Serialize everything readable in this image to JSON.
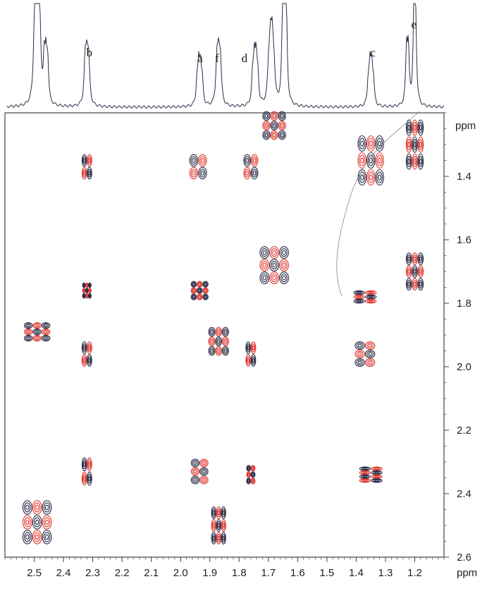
{
  "chart_data": {
    "type": "2d-nmr-contour",
    "title": "",
    "x_axis": {
      "label": "ppm",
      "range": [
        2.6,
        1.1
      ],
      "reversed": true,
      "ticks": [
        2.5,
        2.4,
        2.3,
        2.2,
        2.1,
        2.0,
        1.9,
        1.8,
        1.7,
        1.6,
        1.5,
        1.4,
        1.3,
        1.2
      ],
      "tick_labels": [
        "2.5",
        "2.4",
        "2.3",
        "2.2",
        "2.1",
        "2.0",
        "1.9",
        "1.8",
        "1.7",
        "1.6",
        "1.5",
        "1.4",
        "1.3",
        "1.2"
      ]
    },
    "y_axis": {
      "label": "ppm",
      "range": [
        1.2,
        2.6
      ],
      "ticks": [
        1.4,
        1.6,
        1.8,
        2.0,
        2.2,
        2.4,
        2.6
      ],
      "tick_labels": [
        "1.4",
        "1.6",
        "1.8",
        "2.0",
        "2.2",
        "2.4",
        "2.6"
      ]
    },
    "colors": {
      "positive": "#262a45",
      "negative": "#e0382f",
      "spectrum": "#2a2e4a"
    },
    "projection_1d": {
      "peaks": [
        {
          "label": "",
          "ppm": 2.49,
          "height": 1.0,
          "width": 0.012,
          "multiplicity": 4
        },
        {
          "label": "",
          "ppm": 2.46,
          "height": 0.42,
          "width": 0.01,
          "multiplicity": 3
        },
        {
          "label": "b",
          "ppm": 2.32,
          "height": 0.42,
          "width": 0.012,
          "multiplicity": 3
        },
        {
          "label": "a",
          "ppm": 1.935,
          "height": 0.38,
          "width": 0.01,
          "multiplicity": 4
        },
        {
          "label": "f",
          "ppm": 1.87,
          "height": 0.42,
          "width": 0.012,
          "multiplicity": 3
        },
        {
          "label": "d",
          "ppm": 1.745,
          "height": 0.45,
          "width": 0.01,
          "multiplicity": 4
        },
        {
          "label": "",
          "ppm": 1.69,
          "height": 0.55,
          "width": 0.012,
          "multiplicity": 4
        },
        {
          "label": "",
          "ppm": 1.645,
          "height": 0.92,
          "width": 0.01,
          "multiplicity": 3
        },
        {
          "label": "c",
          "ppm": 1.35,
          "height": 0.38,
          "width": 0.01,
          "multiplicity": 4
        },
        {
          "label": "",
          "ppm": 1.225,
          "height": 0.55,
          "width": 0.01,
          "multiplicity": 2
        },
        {
          "label": "e",
          "ppm": 1.2,
          "height": 0.85,
          "width": 0.01,
          "multiplicity": 2
        }
      ],
      "peak_labels": [
        {
          "text": "b",
          "ppm": 2.31
        },
        {
          "text": "a",
          "ppm": 1.93
        },
        {
          "text": "f",
          "ppm": 1.87
        },
        {
          "text": "d",
          "ppm": 1.78
        },
        {
          "text": "c",
          "ppm": 1.34
        },
        {
          "text": "e",
          "ppm": 1.2
        }
      ]
    },
    "cross_peaks": [
      {
        "x": 2.32,
        "y": 1.37,
        "w": 0.035,
        "h": 0.08,
        "pattern": "2x2"
      },
      {
        "x": 1.94,
        "y": 1.37,
        "w": 0.06,
        "h": 0.08,
        "pattern": "2x2"
      },
      {
        "x": 1.76,
        "y": 1.37,
        "w": 0.05,
        "h": 0.08,
        "pattern": "2x2"
      },
      {
        "x": 1.35,
        "y": 1.35,
        "w": 0.09,
        "h": 0.16,
        "pattern": "grid"
      },
      {
        "x": 1.2,
        "y": 1.3,
        "w": 0.06,
        "h": 0.16,
        "pattern": "grid"
      },
      {
        "x": 1.68,
        "y": 1.24,
        "w": 0.08,
        "h": 0.09,
        "pattern": "grid"
      },
      {
        "x": 2.32,
        "y": 1.76,
        "w": 0.03,
        "h": 0.05,
        "pattern": "3x3"
      },
      {
        "x": 1.935,
        "y": 1.76,
        "w": 0.06,
        "h": 0.06,
        "pattern": "3x3"
      },
      {
        "x": 1.37,
        "y": 1.78,
        "w": 0.08,
        "h": 0.04,
        "pattern": "2x3"
      },
      {
        "x": 1.2,
        "y": 1.7,
        "w": 0.06,
        "h": 0.12,
        "pattern": "grid"
      },
      {
        "x": 2.49,
        "y": 1.89,
        "w": 0.09,
        "h": 0.06,
        "pattern": "grid"
      },
      {
        "x": 2.32,
        "y": 1.96,
        "w": 0.035,
        "h": 0.08,
        "pattern": "2x2"
      },
      {
        "x": 1.76,
        "y": 1.96,
        "w": 0.035,
        "h": 0.08,
        "pattern": "2x2"
      },
      {
        "x": 1.37,
        "y": 1.96,
        "w": 0.07,
        "h": 0.08,
        "pattern": "2x3"
      },
      {
        "x": 2.32,
        "y": 2.33,
        "w": 0.035,
        "h": 0.09,
        "pattern": "2x2"
      },
      {
        "x": 1.935,
        "y": 2.33,
        "w": 0.06,
        "h": 0.08,
        "pattern": "2x3"
      },
      {
        "x": 1.76,
        "y": 2.34,
        "w": 0.03,
        "h": 0.06,
        "pattern": "2x3"
      },
      {
        "x": 1.35,
        "y": 2.34,
        "w": 0.08,
        "h": 0.05,
        "pattern": "2x4"
      },
      {
        "x": 2.49,
        "y": 2.49,
        "w": 0.1,
        "h": 0.14,
        "pattern": "grid"
      },
      {
        "x": 1.87,
        "y": 2.5,
        "w": 0.05,
        "h": 0.12,
        "pattern": "grid"
      }
    ],
    "diagonal": [
      {
        "x": 1.68,
        "y": 1.68,
        "w": 0.1,
        "h": 0.12
      },
      {
        "x": 1.87,
        "y": 1.92,
        "w": 0.07,
        "h": 0.09
      }
    ]
  }
}
